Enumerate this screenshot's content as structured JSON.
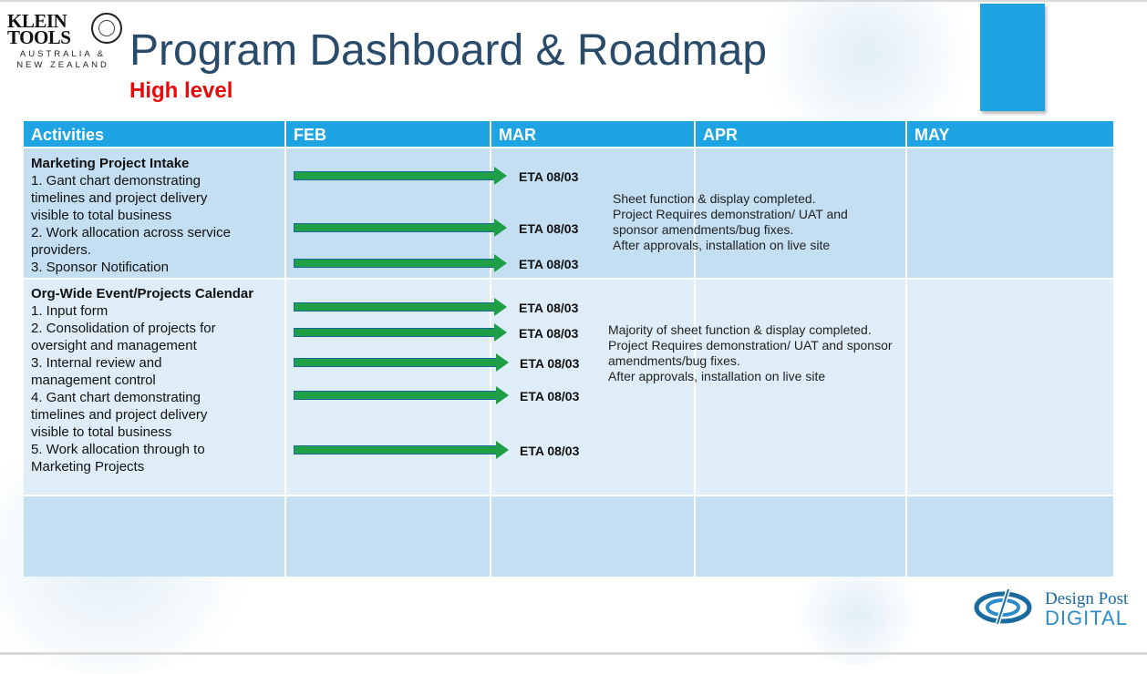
{
  "logo": {
    "brand_line1": "KLEIN",
    "brand_line2": "TOOLS",
    "region_line1": "AUSTRALIA &",
    "region_line2": "NEW ZEALAND"
  },
  "title": "Program Dashboard & Roadmap",
  "subtitle": "High level",
  "table": {
    "columns": [
      "Activities",
      "FEB",
      "MAR",
      "APR",
      "MAY"
    ],
    "sections": [
      {
        "heading": "Marketing Project Intake",
        "lines": [
          "1. Gant chart demonstrating",
          "timelines and project delivery",
          "visible to total business",
          "2. Work allocation across service",
          "providers.",
          "3. Sponsor Notification"
        ],
        "etas": [
          "ETA 08/03",
          "ETA 08/03",
          "ETA 08/03"
        ],
        "note": [
          "Sheet function & display completed.",
          "Project Requires demonstration/ UAT and",
          "sponsor amendments/bug fixes.",
          "After approvals, installation on live site"
        ]
      },
      {
        "heading": "Org-Wide Event/Projects Calendar",
        "lines": [
          "1. Input form",
          "2. Consolidation of projects for",
          "oversight and management",
          "3. Internal review and",
          "management control",
          "4. Gant chart demonstrating",
          "timelines and project delivery",
          "visible to total business",
          "5. Work allocation through to",
          "Marketing Projects"
        ],
        "etas": [
          "ETA 08/03",
          "ETA 08/03",
          "ETA 08/03",
          "ETA 08/03",
          "ETA 08/03"
        ],
        "note": [
          "Majority of sheet function & display completed.",
          "Project Requires demonstration/ UAT and sponsor",
          "amendments/bug fixes.",
          "After approvals, installation on live site"
        ]
      }
    ]
  },
  "footer_logo": {
    "line1": "Design Post",
    "line2": "DIGITAL"
  },
  "colors": {
    "title": "#2a4a6a",
    "subtitle": "#e8090a",
    "header": "#1ea3e3",
    "arrow": "#1e9e45",
    "row_dark": "#c4dff2",
    "row_light": "#deedf8"
  }
}
